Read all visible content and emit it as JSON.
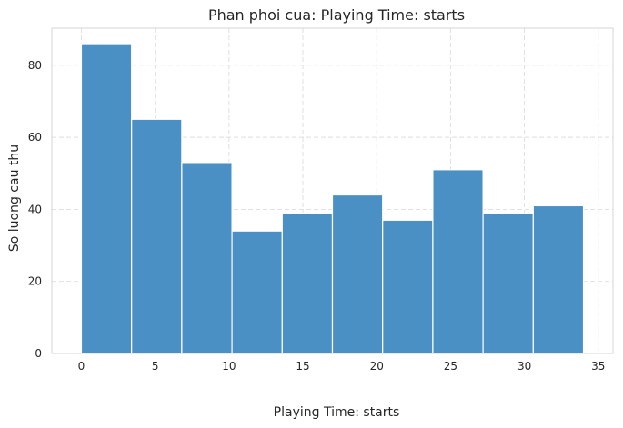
{
  "chart_data": {
    "type": "bar",
    "title": "Phan phoi cua: Playing Time: starts",
    "xlabel": "Playing Time: starts",
    "ylabel": "So luong cau thu",
    "bin_edges": [
      0,
      3.4,
      6.8,
      10.2,
      13.6,
      17.0,
      20.4,
      23.8,
      27.2,
      30.6,
      34.0
    ],
    "values": [
      86,
      65,
      53,
      34,
      39,
      44,
      37,
      51,
      39,
      41
    ],
    "xlim": [
      -2.0,
      36.0
    ],
    "ylim": [
      0,
      90.3
    ],
    "xticks": [
      0,
      5,
      10,
      15,
      20,
      25,
      30,
      35
    ],
    "yticks": [
      0,
      20,
      40,
      60,
      80
    ],
    "grid": true,
    "bar_color": "#4a90c4"
  }
}
